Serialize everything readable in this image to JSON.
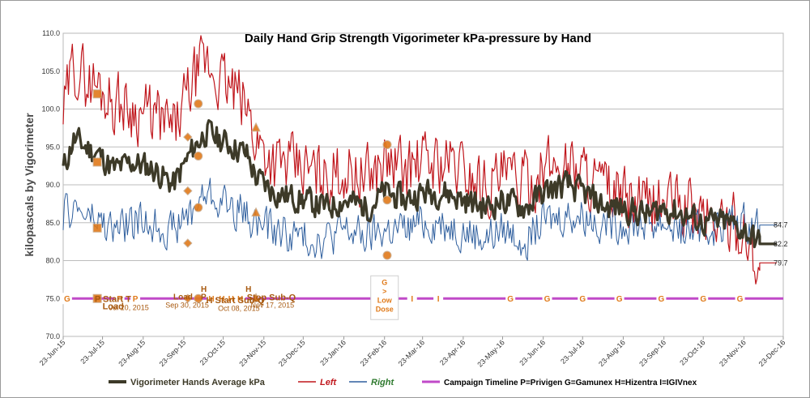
{
  "chart_data": {
    "type": "line",
    "title": "Daily Hand Grip Strength Vigorimeter kPa-pressure by Hand",
    "ylabel": "kilopascals by Vigorimeter",
    "xlabel": "",
    "ylim": [
      70,
      110
    ],
    "y_ticks": [
      "70.0",
      "75.0",
      "80.0",
      "85.0",
      "90.0",
      "95.0",
      "100.0",
      "105.0",
      "110.0"
    ],
    "x_range": [
      "2015-06-23",
      "2016-12-23"
    ],
    "x_ticks": [
      {
        "date": "2015-06-23",
        "label": "23-Jun-15"
      },
      {
        "date": "2015-07-23",
        "label": "23-Jul-15"
      },
      {
        "date": "2015-08-23",
        "label": "23-Aug-15"
      },
      {
        "date": "2015-09-23",
        "label": "23-Sep-15"
      },
      {
        "date": "2015-10-23",
        "label": "23-Oct-15"
      },
      {
        "date": "2015-11-23",
        "label": "23-Nov-15"
      },
      {
        "date": "2015-12-23",
        "label": "23-Dec-15"
      },
      {
        "date": "2016-01-23",
        "label": "23-Jan-16"
      },
      {
        "date": "2016-02-23",
        "label": "23-Feb-16"
      },
      {
        "date": "2016-03-23",
        "label": "23-Mar-16"
      },
      {
        "date": "2016-04-23",
        "label": "23-Apr-16"
      },
      {
        "date": "2016-05-23",
        "label": "23-May-16"
      },
      {
        "date": "2016-06-23",
        "label": "23-Jun-16"
      },
      {
        "date": "2016-07-23",
        "label": "23-Jul-16"
      },
      {
        "date": "2016-08-23",
        "label": "23-Aug-16"
      },
      {
        "date": "2016-09-23",
        "label": "23-Sep-16"
      },
      {
        "date": "2016-10-23",
        "label": "23-Oct-16"
      },
      {
        "date": "2016-11-23",
        "label": "23-Nov-16"
      },
      {
        "date": "2016-12-23",
        "label": "23-Dec-16"
      }
    ],
    "grid": "horizontal",
    "legend_placement": "bottom",
    "series": [
      {
        "name": "Vigorimeter Hands Average kPa",
        "color": "#3d3a28",
        "x": [
          "2015-06-23",
          "2015-07-01",
          "2015-07-10",
          "2015-07-20",
          "2015-08-01",
          "2015-08-15",
          "2015-09-01",
          "2015-09-15",
          "2015-10-01",
          "2015-10-10",
          "2015-10-20",
          "2015-11-01",
          "2015-11-10",
          "2015-11-17",
          "2015-12-01",
          "2015-12-23",
          "2016-01-10",
          "2016-01-23",
          "2016-02-10",
          "2016-02-23",
          "2016-03-10",
          "2016-03-23",
          "2016-04-10",
          "2016-04-23",
          "2016-05-10",
          "2016-05-23",
          "2016-06-10",
          "2016-06-23",
          "2016-07-10",
          "2016-07-23",
          "2016-08-10",
          "2016-08-23",
          "2016-09-10",
          "2016-09-23",
          "2016-10-10",
          "2016-10-23",
          "2016-11-10",
          "2016-11-23",
          "2016-12-05"
        ],
        "y": [
          92,
          96,
          95,
          94,
          92,
          93,
          92,
          90,
          95,
          97,
          96,
          95,
          94,
          91,
          89,
          88,
          87,
          88,
          87,
          89,
          88,
          89,
          89,
          88,
          87,
          88,
          87,
          89,
          90,
          89,
          87,
          87,
          86,
          87,
          86,
          85,
          85,
          84,
          82.2
        ]
      },
      {
        "name": "Left",
        "color": "#c0161c",
        "x": [
          "2015-06-23",
          "2015-07-01",
          "2015-07-10",
          "2015-07-20",
          "2015-08-01",
          "2015-08-15",
          "2015-09-01",
          "2015-09-15",
          "2015-10-01",
          "2015-10-10",
          "2015-10-20",
          "2015-11-01",
          "2015-11-10",
          "2015-11-17",
          "2015-12-01",
          "2015-12-23",
          "2016-01-10",
          "2016-01-23",
          "2016-02-10",
          "2016-02-23",
          "2016-03-10",
          "2016-03-23",
          "2016-04-10",
          "2016-04-23",
          "2016-05-10",
          "2016-05-23",
          "2016-06-10",
          "2016-06-23",
          "2016-07-10",
          "2016-07-23",
          "2016-08-10",
          "2016-08-23",
          "2016-09-10",
          "2016-09-23",
          "2016-10-10",
          "2016-10-23",
          "2016-11-10",
          "2016-11-23",
          "2016-12-05"
        ],
        "y": [
          99,
          106,
          104,
          103,
          101,
          100,
          99,
          97,
          104,
          106,
          104,
          102,
          100,
          96,
          93,
          92,
          91,
          92,
          91,
          93,
          92,
          93,
          93,
          92,
          90,
          91,
          90,
          92,
          93,
          92,
          89,
          88,
          87,
          88,
          87,
          86,
          85,
          84,
          79.7
        ]
      },
      {
        "name": "Right",
        "color": "#2f5f9e",
        "x": [
          "2015-06-23",
          "2015-07-01",
          "2015-07-10",
          "2015-07-20",
          "2015-08-01",
          "2015-08-15",
          "2015-09-01",
          "2015-09-15",
          "2015-10-01",
          "2015-10-10",
          "2015-10-20",
          "2015-11-01",
          "2015-11-10",
          "2015-11-17",
          "2015-12-01",
          "2015-12-23",
          "2016-01-10",
          "2016-01-23",
          "2016-02-10",
          "2016-02-23",
          "2016-03-10",
          "2016-03-23",
          "2016-04-10",
          "2016-04-23",
          "2016-05-10",
          "2016-05-23",
          "2016-06-10",
          "2016-06-23",
          "2016-07-10",
          "2016-07-23",
          "2016-08-10",
          "2016-08-23",
          "2016-09-10",
          "2016-09-23",
          "2016-10-10",
          "2016-10-23",
          "2016-11-10",
          "2016-11-23",
          "2016-12-05"
        ],
        "y": [
          86,
          87,
          86,
          85,
          84,
          85,
          85,
          84,
          87,
          89,
          88,
          87,
          86,
          85,
          84,
          83,
          83,
          84,
          83,
          84,
          84,
          85,
          85,
          84,
          83,
          84,
          83,
          85,
          86,
          86,
          85,
          85,
          85,
          85,
          84,
          84,
          85,
          85,
          84.7
        ]
      }
    ],
    "end_labels": [
      {
        "series": "Right",
        "value": "84.7"
      },
      {
        "series": "Vigorimeter Hands Average kPa",
        "value": "82.2"
      },
      {
        "series": "Left",
        "value": "79.7"
      }
    ],
    "campaign": {
      "name": "Campaign Timeline P=Privigen G=Gamunex H=Hizentra I=IGIVnex",
      "color": "#c04ac8",
      "y": 75,
      "markers": [
        {
          "date": "2015-06-26",
          "label": "G"
        },
        {
          "date": "2015-08-05",
          "label": "P"
        },
        {
          "date": "2015-08-17",
          "label": "P"
        },
        {
          "date": "2015-10-14",
          "label": "H"
        },
        {
          "date": "2015-10-22",
          "label": "H"
        },
        {
          "date": "2015-10-29",
          "label": "H"
        },
        {
          "date": "2015-11-05",
          "label": "H"
        },
        {
          "date": "2016-03-15",
          "label": "I"
        },
        {
          "date": "2016-04-04",
          "label": "I"
        },
        {
          "date": "2016-05-29",
          "label": "G"
        },
        {
          "date": "2016-06-26",
          "label": "G"
        },
        {
          "date": "2016-07-23",
          "label": "G"
        },
        {
          "date": "2016-08-20",
          "label": "G"
        },
        {
          "date": "2016-09-21",
          "label": "G"
        },
        {
          "date": "2016-10-23",
          "label": "G"
        },
        {
          "date": "2016-11-20",
          "label": "G"
        }
      ],
      "callout": {
        "date": "2016-02-23",
        "lines": [
          "G",
          ">",
          "Low",
          "Dose"
        ]
      }
    },
    "annotations": [
      {
        "date": "2015-07-17",
        "y": 75,
        "text": "P Start T",
        "size": 11
      },
      {
        "date": "2015-07-23",
        "y": 74,
        "text": "Load",
        "size": 11
      },
      {
        "date": "2015-07-28",
        "y": 73.9,
        "text": "Jul 20, 2015",
        "size": 9
      },
      {
        "date": "2015-09-15",
        "y": 75.3,
        "text": "Load",
        "size": 10
      },
      {
        "date": "2015-09-09",
        "y": 74.2,
        "text": "Sep 30, 2015",
        "size": 9
      },
      {
        "date": "2015-10-06",
        "y": 75.3,
        "text": "P",
        "size": 10
      },
      {
        "date": "2015-10-06",
        "y": 76.3,
        "text": "H",
        "size": 10
      },
      {
        "date": "2015-10-10",
        "y": 74.8,
        "text": "H Start Sub-Q",
        "size": 11
      },
      {
        "date": "2015-10-19",
        "y": 73.8,
        "text": "Oct 08, 2015",
        "size": 9
      },
      {
        "date": "2015-11-10",
        "y": 75.2,
        "text": "Stop Sub-Q",
        "size": 11
      },
      {
        "date": "2015-11-13",
        "y": 74.2,
        "text": "Nov 17, 2015",
        "size": 9
      },
      {
        "date": "2015-11-09",
        "y": 76.3,
        "text": "H",
        "size": 10
      }
    ],
    "event_markers": [
      {
        "date": "2015-07-19",
        "y": 102,
        "shape": "square",
        "color": "#e07a1a"
      },
      {
        "date": "2015-07-19",
        "y": 93,
        "shape": "square",
        "color": "#e07a1a"
      },
      {
        "date": "2015-07-19",
        "y": 84.3,
        "shape": "square",
        "color": "#e07a1a"
      },
      {
        "date": "2015-07-19",
        "y": 75,
        "shape": "square",
        "color": "#e07a1a"
      },
      {
        "date": "2015-09-26",
        "y": 96.3,
        "shape": "diamond",
        "color": "#e07a1a"
      },
      {
        "date": "2015-09-26",
        "y": 89.2,
        "shape": "diamond",
        "color": "#e07a1a"
      },
      {
        "date": "2015-09-26",
        "y": 82.3,
        "shape": "diamond",
        "color": "#e07a1a"
      },
      {
        "date": "2015-09-26",
        "y": 75,
        "shape": "diamond",
        "color": "#e07a1a"
      },
      {
        "date": "2015-10-04",
        "y": 100.7,
        "shape": "circle",
        "color": "#e07a1a"
      },
      {
        "date": "2015-10-04",
        "y": 93.8,
        "shape": "circle",
        "color": "#e07a1a"
      },
      {
        "date": "2015-10-04",
        "y": 87,
        "shape": "circle",
        "color": "#e07a1a"
      },
      {
        "date": "2015-10-04",
        "y": 75,
        "shape": "circle",
        "color": "#e07a1a"
      },
      {
        "date": "2015-11-17",
        "y": 97.5,
        "shape": "triangle",
        "color": "#e07a1a"
      },
      {
        "date": "2015-11-17",
        "y": 86.3,
        "shape": "triangle",
        "color": "#e07a1a"
      },
      {
        "date": "2015-11-17",
        "y": 75,
        "shape": "triangle",
        "color": "#e07a1a"
      },
      {
        "date": "2016-02-25",
        "y": 95.3,
        "shape": "circle",
        "color": "#e07a1a"
      },
      {
        "date": "2016-02-25",
        "y": 88,
        "shape": "circle",
        "color": "#e07a1a"
      },
      {
        "date": "2016-02-25",
        "y": 80.7,
        "shape": "circle",
        "color": "#e07a1a"
      }
    ]
  }
}
